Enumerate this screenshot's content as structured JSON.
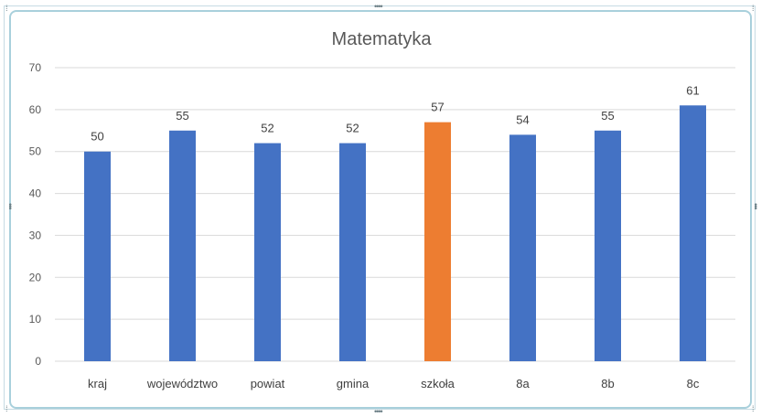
{
  "chart_data": {
    "type": "bar",
    "title": "Matematyka",
    "xlabel": "",
    "ylabel": "",
    "ylim": [
      0,
      70
    ],
    "yticks": [
      0,
      10,
      20,
      30,
      40,
      50,
      60,
      70
    ],
    "grid": true,
    "legend": "none",
    "categories": [
      "kraj",
      "województwo",
      "powiat",
      "gmina",
      "szkoła",
      "8a",
      "8b",
      "8c"
    ],
    "values": [
      50,
      55,
      52,
      52,
      57,
      54,
      55,
      61
    ],
    "colors": [
      "#4472C4",
      "#4472C4",
      "#4472C4",
      "#4472C4",
      "#ED7D31",
      "#4472C4",
      "#4472C4",
      "#4472C4"
    ],
    "highlight_category": "szkoła"
  }
}
